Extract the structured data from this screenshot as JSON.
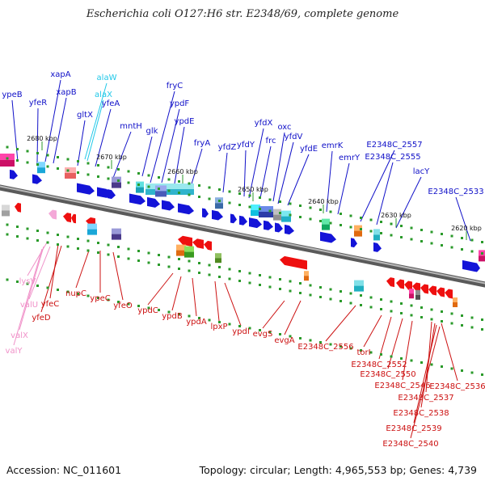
{
  "title": "Escherichia coli O127:H6 str. E2348/69, complete genome",
  "footer": {
    "accession": "Accession: NC_011601",
    "summary": "Topology: circular; Length: 4,965,553 bp; Genes: 4,739"
  },
  "colors": {
    "forward_label": "#1010c8",
    "reverse_label": "#cc1111",
    "trna_label": "#20c8e8",
    "trna_reverse_label": "#f090c8",
    "backbone": "#888888"
  },
  "ticks": [
    "2680 kbp",
    "2670 kbp",
    "2660 kbp",
    "2650 kbp",
    "2640 kbp",
    "2630 kbp",
    "2620 kbp"
  ],
  "forward_genes": [
    "ypeB",
    "yfeR",
    "xapA",
    "xapB",
    "gltX",
    "alaW",
    "alaX",
    "yfeA",
    "mntH",
    "glk",
    "fryC",
    "ypdF",
    "ypdE",
    "fryA",
    "yfdZ",
    "yfdY",
    "yfdX",
    "frc",
    "oxc",
    "yfdV",
    "yfdE",
    "emrK",
    "emrY",
    "E2348C_2557",
    "E2348C_2555",
    "lacY",
    "E2348C_2533"
  ],
  "reverse_genes": [
    "lysV",
    "valU",
    "yfeC",
    "yfeD",
    "valX",
    "valY",
    "nupC",
    "ypeC",
    "yfeO",
    "ypdC",
    "ypdB",
    "ypdA",
    "lpxP",
    "ypdI",
    "evgS",
    "evgA",
    "E2348C_2556",
    "torI",
    "E2348C_2552",
    "E2348C_2550",
    "E2348C_2546",
    "E2348C_2537",
    "E2348C_2538",
    "E2348C_2539",
    "E2348C_2540",
    "E2348C_2536"
  ]
}
